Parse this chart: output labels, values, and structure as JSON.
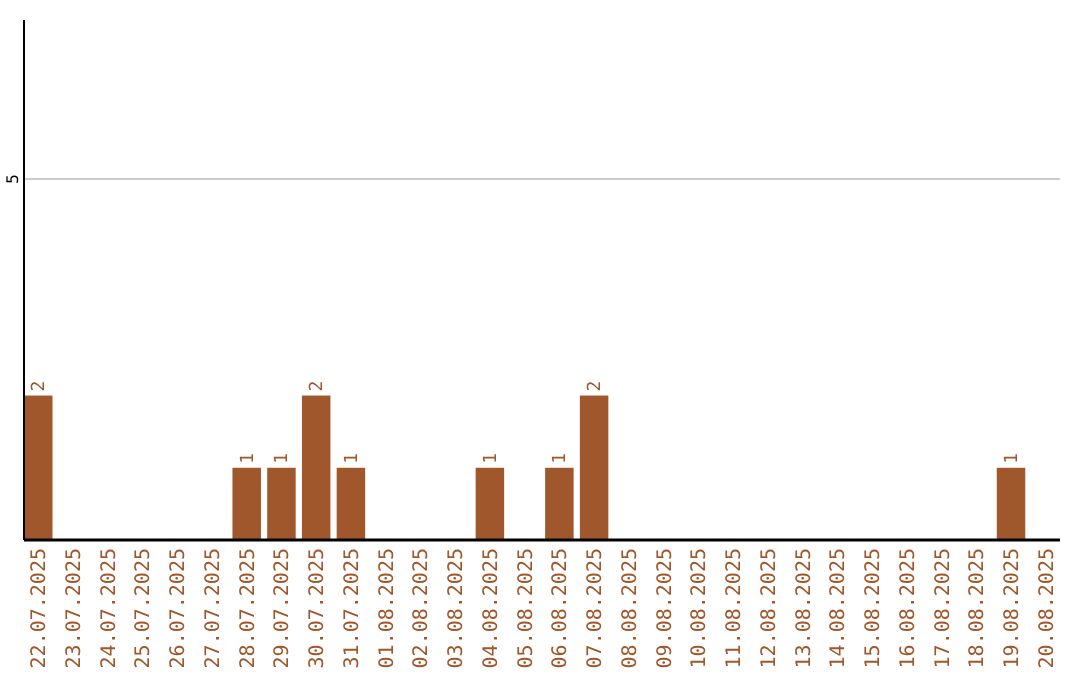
{
  "chart_data": {
    "type": "bar",
    "categories": [
      "22.07.2025",
      "23.07.2025",
      "24.07.2025",
      "25.07.2025",
      "26.07.2025",
      "27.07.2025",
      "28.07.2025",
      "29.07.2025",
      "30.07.2025",
      "31.07.2025",
      "01.08.2025",
      "02.08.2025",
      "03.08.2025",
      "04.08.2025",
      "05.08.2025",
      "06.08.2025",
      "07.08.2025",
      "08.08.2025",
      "09.08.2025",
      "10.08.2025",
      "11.08.2025",
      "12.08.2025",
      "13.08.2025",
      "14.08.2025",
      "15.08.2025",
      "16.08.2025",
      "17.08.2025",
      "18.08.2025",
      "19.08.2025",
      "20.08.2025"
    ],
    "values": [
      2,
      0,
      0,
      0,
      0,
      0,
      1,
      1,
      2,
      1,
      0,
      0,
      0,
      1,
      0,
      1,
      2,
      0,
      0,
      0,
      0,
      0,
      0,
      0,
      0,
      0,
      0,
      0,
      1,
      0
    ],
    "value_labels": [
      "2",
      null,
      null,
      null,
      null,
      null,
      "1",
      "1",
      "2",
      "1",
      null,
      null,
      null,
      "1",
      null,
      "1",
      "2",
      null,
      null,
      null,
      null,
      null,
      null,
      null,
      null,
      null,
      null,
      null,
      "1",
      null
    ],
    "color": "#a0572b",
    "ylim": [
      0,
      7.2
    ],
    "yticks": [
      5
    ],
    "grid": "y"
  }
}
